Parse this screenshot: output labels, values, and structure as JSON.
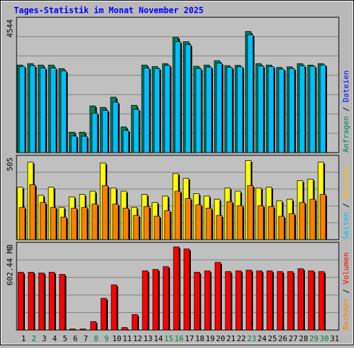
{
  "title": "Tages-Statistik im Monat November 2025",
  "colors": {
    "background": "#b9b9b9",
    "plot_background": "#c0c0c0",
    "grid": "#808080",
    "title": "#0000ff",
    "anfragen": "#00805a",
    "dateien": "#00c0ff",
    "seiten": "#00c0ff",
    "besuche": "#ffff00",
    "rechner": "#ff8000",
    "volumen": "#ff0000",
    "day_weekday": "#000000",
    "day_weekend": "#008040"
  },
  "chart_data": [
    {
      "type": "bar",
      "panel": "top",
      "ymax_label": "4544",
      "ylim": [
        0,
        4544
      ],
      "grid": true,
      "categories": [
        "1",
        "2",
        "3",
        "4",
        "5",
        "6",
        "7",
        "8",
        "9",
        "10",
        "11",
        "12",
        "13",
        "14",
        "15",
        "16",
        "17",
        "18",
        "19",
        "20",
        "21",
        "22",
        "23",
        "24",
        "25",
        "26",
        "27",
        "28",
        "29",
        "30",
        "31"
      ],
      "series": [
        {
          "name": "Anfragen",
          "values": [
            3000,
            3050,
            3000,
            3000,
            2880,
            700,
            700,
            1600,
            1550,
            1900,
            880,
            1620,
            3000,
            2950,
            3050,
            3950,
            3800,
            2960,
            3000,
            3150,
            2980,
            2990,
            4150,
            3050,
            3000,
            2920,
            2940,
            3050,
            3000,
            3050,
            0
          ]
        },
        {
          "name": "Dateien",
          "values": [
            2950,
            2980,
            2900,
            2900,
            2800,
            570,
            560,
            1350,
            1450,
            1730,
            760,
            1480,
            2900,
            2880,
            2990,
            3800,
            3700,
            2880,
            2930,
            3070,
            2920,
            2940,
            4040,
            2970,
            2950,
            2860,
            2880,
            2980,
            2960,
            3000,
            0
          ]
        }
      ]
    },
    {
      "type": "bar",
      "panel": "middle",
      "ymax_label": "505",
      "ylim": [
        0,
        505
      ],
      "grid": true,
      "categories": [
        "1",
        "2",
        "3",
        "4",
        "5",
        "6",
        "7",
        "8",
        "9",
        "10",
        "11",
        "12",
        "13",
        "14",
        "15",
        "16",
        "17",
        "18",
        "19",
        "20",
        "21",
        "22",
        "23",
        "24",
        "25",
        "26",
        "27",
        "28",
        "29",
        "30",
        "31"
      ],
      "series": [
        {
          "name": "Besuche",
          "values": [
            325,
            480,
            275,
            325,
            200,
            265,
            280,
            300,
            475,
            320,
            300,
            200,
            280,
            230,
            270,
            410,
            380,
            285,
            270,
            250,
            320,
            300,
            490,
            320,
            325,
            240,
            250,
            365,
            375,
            480,
            0
          ]
        },
        {
          "name": "Rechner",
          "values": [
            200,
            340,
            230,
            200,
            140,
            195,
            200,
            220,
            335,
            220,
            195,
            150,
            205,
            145,
            180,
            300,
            255,
            215,
            195,
            150,
            235,
            210,
            335,
            210,
            205,
            145,
            160,
            230,
            250,
            280,
            0
          ]
        }
      ]
    },
    {
      "type": "bar",
      "panel": "bottom",
      "ymax_label": "602.44 MB",
      "ylim": [
        0,
        602.44
      ],
      "grid": true,
      "categories": [
        "1",
        "2",
        "3",
        "4",
        "5",
        "6",
        "7",
        "8",
        "9",
        "10",
        "11",
        "12",
        "13",
        "14",
        "15",
        "16",
        "17",
        "18",
        "19",
        "20",
        "21",
        "22",
        "23",
        "24",
        "25",
        "26",
        "27",
        "28",
        "29",
        "30",
        "31"
      ],
      "series": [
        {
          "name": "Volumen",
          "values": [
            410,
            410,
            405,
            410,
            395,
            8,
            8,
            60,
            225,
            320,
            18,
            110,
            420,
            430,
            450,
            590,
            575,
            410,
            420,
            480,
            415,
            420,
            425,
            420,
            420,
            415,
            415,
            435,
            420,
            415,
            0
          ]
        }
      ]
    }
  ],
  "day_colors": [
    "wd",
    "we",
    "wd",
    "wd",
    "wd",
    "wd",
    "wd",
    "we",
    "we",
    "wd",
    "wd",
    "wd",
    "wd",
    "wd",
    "we",
    "we",
    "wd",
    "wd",
    "wd",
    "wd",
    "wd",
    "wd",
    "we",
    "wd",
    "wd",
    "wd",
    "wd",
    "wd",
    "we",
    "we",
    "wd"
  ],
  "right_legend": {
    "panel1": [
      {
        "text": "Anfragen",
        "color": "#00805a"
      },
      {
        "text": " / ",
        "color": "#000000"
      },
      {
        "text": "Dateien",
        "color": "#0000ff"
      }
    ],
    "panel2": [
      {
        "text": "Seiten",
        "color": "#00c0ff"
      },
      {
        "text": " / ",
        "color": "#000000"
      },
      {
        "text": "Besuche",
        "color": "#ffbf00"
      }
    ],
    "panel3": [
      {
        "text": "Rechner",
        "color": "#ff8000"
      },
      {
        "text": " / ",
        "color": "#000000"
      },
      {
        "text": "Volumen",
        "color": "#ff0000"
      }
    ]
  }
}
